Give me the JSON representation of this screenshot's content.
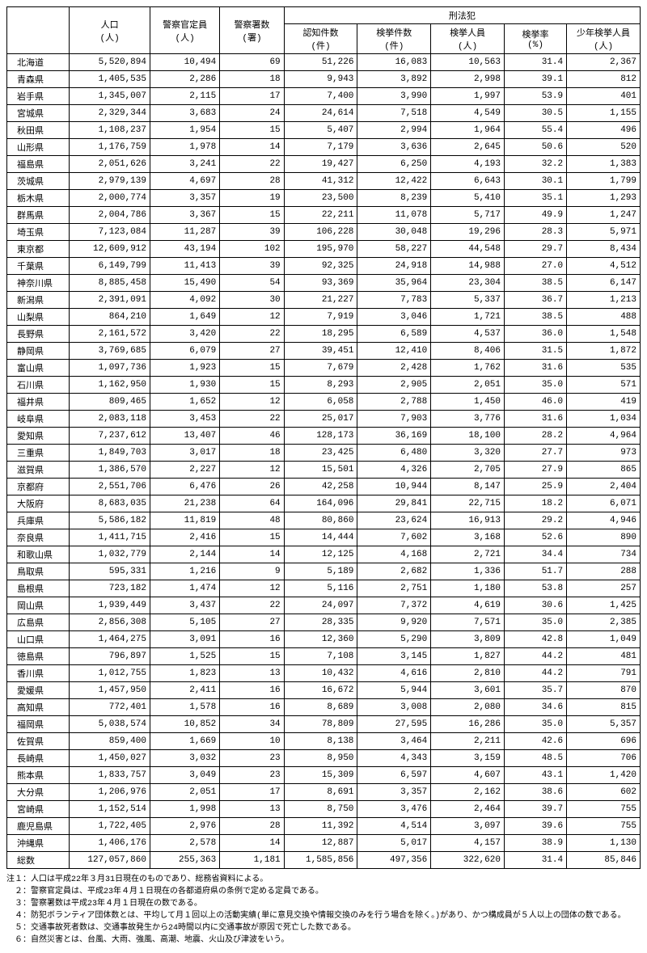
{
  "headers": {
    "blank": "",
    "population": "人口\n(人)",
    "police_personnel": "警察官定員\n(人)",
    "police_stations": "警察署数\n(署)",
    "criminal_group": "刑法犯",
    "recognized": "認知件数\n(件)",
    "arrests": "検挙件数\n(件)",
    "arrested_persons": "検挙人員\n(人)",
    "arrest_rate": "検挙率\n(%)",
    "juvenile": "少年検挙人員\n(人)"
  },
  "rows": [
    {
      "pref": "北海道",
      "pop": "5,520,894",
      "pers": "10,494",
      "stn": "69",
      "rec": "51,226",
      "arr": "16,083",
      "arrp": "10,563",
      "rate": "31.4",
      "juv": "2,367"
    },
    {
      "pref": "青森県",
      "pop": "1,405,535",
      "pers": "2,286",
      "stn": "18",
      "rec": "9,943",
      "arr": "3,892",
      "arrp": "2,998",
      "rate": "39.1",
      "juv": "812"
    },
    {
      "pref": "岩手県",
      "pop": "1,345,007",
      "pers": "2,115",
      "stn": "17",
      "rec": "7,400",
      "arr": "3,990",
      "arrp": "1,997",
      "rate": "53.9",
      "juv": "401"
    },
    {
      "pref": "宮城県",
      "pop": "2,329,344",
      "pers": "3,683",
      "stn": "24",
      "rec": "24,614",
      "arr": "7,518",
      "arrp": "4,549",
      "rate": "30.5",
      "juv": "1,155"
    },
    {
      "pref": "秋田県",
      "pop": "1,108,237",
      "pers": "1,954",
      "stn": "15",
      "rec": "5,407",
      "arr": "2,994",
      "arrp": "1,964",
      "rate": "55.4",
      "juv": "496"
    },
    {
      "pref": "山形県",
      "pop": "1,176,759",
      "pers": "1,978",
      "stn": "14",
      "rec": "7,179",
      "arr": "3,636",
      "arrp": "2,645",
      "rate": "50.6",
      "juv": "520"
    },
    {
      "pref": "福島県",
      "pop": "2,051,626",
      "pers": "3,241",
      "stn": "22",
      "rec": "19,427",
      "arr": "6,250",
      "arrp": "4,193",
      "rate": "32.2",
      "juv": "1,383"
    },
    {
      "pref": "茨城県",
      "pop": "2,979,139",
      "pers": "4,697",
      "stn": "28",
      "rec": "41,312",
      "arr": "12,422",
      "arrp": "6,643",
      "rate": "30.1",
      "juv": "1,799"
    },
    {
      "pref": "栃木県",
      "pop": "2,000,774",
      "pers": "3,357",
      "stn": "19",
      "rec": "23,500",
      "arr": "8,239",
      "arrp": "5,410",
      "rate": "35.1",
      "juv": "1,293"
    },
    {
      "pref": "群馬県",
      "pop": "2,004,786",
      "pers": "3,367",
      "stn": "15",
      "rec": "22,211",
      "arr": "11,078",
      "arrp": "5,717",
      "rate": "49.9",
      "juv": "1,247"
    },
    {
      "pref": "埼玉県",
      "pop": "7,123,084",
      "pers": "11,287",
      "stn": "39",
      "rec": "106,228",
      "arr": "30,048",
      "arrp": "19,296",
      "rate": "28.3",
      "juv": "5,971"
    },
    {
      "pref": "東京都",
      "pop": "12,609,912",
      "pers": "43,194",
      "stn": "102",
      "rec": "195,970",
      "arr": "58,227",
      "arrp": "44,548",
      "rate": "29.7",
      "juv": "8,434"
    },
    {
      "pref": "千葉県",
      "pop": "6,149,799",
      "pers": "11,413",
      "stn": "39",
      "rec": "92,325",
      "arr": "24,918",
      "arrp": "14,988",
      "rate": "27.0",
      "juv": "4,512"
    },
    {
      "pref": "神奈川県",
      "pop": "8,885,458",
      "pers": "15,490",
      "stn": "54",
      "rec": "93,369",
      "arr": "35,964",
      "arrp": "23,304",
      "rate": "38.5",
      "juv": "6,147"
    },
    {
      "pref": "新潟県",
      "pop": "2,391,091",
      "pers": "4,092",
      "stn": "30",
      "rec": "21,227",
      "arr": "7,783",
      "arrp": "5,337",
      "rate": "36.7",
      "juv": "1,213"
    },
    {
      "pref": "山梨県",
      "pop": "864,210",
      "pers": "1,649",
      "stn": "12",
      "rec": "7,919",
      "arr": "3,046",
      "arrp": "1,721",
      "rate": "38.5",
      "juv": "488"
    },
    {
      "pref": "長野県",
      "pop": "2,161,572",
      "pers": "3,420",
      "stn": "22",
      "rec": "18,295",
      "arr": "6,589",
      "arrp": "4,537",
      "rate": "36.0",
      "juv": "1,548"
    },
    {
      "pref": "静岡県",
      "pop": "3,769,685",
      "pers": "6,079",
      "stn": "27",
      "rec": "39,451",
      "arr": "12,410",
      "arrp": "8,406",
      "rate": "31.5",
      "juv": "1,872"
    },
    {
      "pref": "富山県",
      "pop": "1,097,736",
      "pers": "1,923",
      "stn": "15",
      "rec": "7,679",
      "arr": "2,428",
      "arrp": "1,762",
      "rate": "31.6",
      "juv": "535"
    },
    {
      "pref": "石川県",
      "pop": "1,162,950",
      "pers": "1,930",
      "stn": "15",
      "rec": "8,293",
      "arr": "2,905",
      "arrp": "2,051",
      "rate": "35.0",
      "juv": "571"
    },
    {
      "pref": "福井県",
      "pop": "809,465",
      "pers": "1,652",
      "stn": "12",
      "rec": "6,058",
      "arr": "2,788",
      "arrp": "1,450",
      "rate": "46.0",
      "juv": "419"
    },
    {
      "pref": "岐阜県",
      "pop": "2,083,118",
      "pers": "3,453",
      "stn": "22",
      "rec": "25,017",
      "arr": "7,903",
      "arrp": "3,776",
      "rate": "31.6",
      "juv": "1,034"
    },
    {
      "pref": "愛知県",
      "pop": "7,237,612",
      "pers": "13,407",
      "stn": "46",
      "rec": "128,173",
      "arr": "36,169",
      "arrp": "18,100",
      "rate": "28.2",
      "juv": "4,964"
    },
    {
      "pref": "三重県",
      "pop": "1,849,703",
      "pers": "3,017",
      "stn": "18",
      "rec": "23,425",
      "arr": "6,480",
      "arrp": "3,320",
      "rate": "27.7",
      "juv": "973"
    },
    {
      "pref": "滋賀県",
      "pop": "1,386,570",
      "pers": "2,227",
      "stn": "12",
      "rec": "15,501",
      "arr": "4,326",
      "arrp": "2,705",
      "rate": "27.9",
      "juv": "865"
    },
    {
      "pref": "京都府",
      "pop": "2,551,706",
      "pers": "6,476",
      "stn": "26",
      "rec": "42,258",
      "arr": "10,944",
      "arrp": "8,147",
      "rate": "25.9",
      "juv": "2,404"
    },
    {
      "pref": "大阪府",
      "pop": "8,683,035",
      "pers": "21,238",
      "stn": "64",
      "rec": "164,096",
      "arr": "29,841",
      "arrp": "22,715",
      "rate": "18.2",
      "juv": "6,071"
    },
    {
      "pref": "兵庫県",
      "pop": "5,586,182",
      "pers": "11,819",
      "stn": "48",
      "rec": "80,860",
      "arr": "23,624",
      "arrp": "16,913",
      "rate": "29.2",
      "juv": "4,946"
    },
    {
      "pref": "奈良県",
      "pop": "1,411,715",
      "pers": "2,416",
      "stn": "15",
      "rec": "14,444",
      "arr": "7,602",
      "arrp": "3,168",
      "rate": "52.6",
      "juv": "890"
    },
    {
      "pref": "和歌山県",
      "pop": "1,032,779",
      "pers": "2,144",
      "stn": "14",
      "rec": "12,125",
      "arr": "4,168",
      "arrp": "2,721",
      "rate": "34.4",
      "juv": "734"
    },
    {
      "pref": "鳥取県",
      "pop": "595,331",
      "pers": "1,216",
      "stn": "9",
      "rec": "5,189",
      "arr": "2,682",
      "arrp": "1,336",
      "rate": "51.7",
      "juv": "288"
    },
    {
      "pref": "島根県",
      "pop": "723,182",
      "pers": "1,474",
      "stn": "12",
      "rec": "5,116",
      "arr": "2,751",
      "arrp": "1,180",
      "rate": "53.8",
      "juv": "257"
    },
    {
      "pref": "岡山県",
      "pop": "1,939,449",
      "pers": "3,437",
      "stn": "22",
      "rec": "24,097",
      "arr": "7,372",
      "arrp": "4,619",
      "rate": "30.6",
      "juv": "1,425"
    },
    {
      "pref": "広島県",
      "pop": "2,856,308",
      "pers": "5,105",
      "stn": "27",
      "rec": "28,335",
      "arr": "9,920",
      "arrp": "7,571",
      "rate": "35.0",
      "juv": "2,385"
    },
    {
      "pref": "山口県",
      "pop": "1,464,275",
      "pers": "3,091",
      "stn": "16",
      "rec": "12,360",
      "arr": "5,290",
      "arrp": "3,809",
      "rate": "42.8",
      "juv": "1,049"
    },
    {
      "pref": "徳島県",
      "pop": "796,897",
      "pers": "1,525",
      "stn": "15",
      "rec": "7,108",
      "arr": "3,145",
      "arrp": "1,827",
      "rate": "44.2",
      "juv": "481"
    },
    {
      "pref": "香川県",
      "pop": "1,012,755",
      "pers": "1,823",
      "stn": "13",
      "rec": "10,432",
      "arr": "4,616",
      "arrp": "2,810",
      "rate": "44.2",
      "juv": "791"
    },
    {
      "pref": "愛媛県",
      "pop": "1,457,950",
      "pers": "2,411",
      "stn": "16",
      "rec": "16,672",
      "arr": "5,944",
      "arrp": "3,601",
      "rate": "35.7",
      "juv": "870"
    },
    {
      "pref": "高知県",
      "pop": "772,401",
      "pers": "1,578",
      "stn": "16",
      "rec": "8,689",
      "arr": "3,008",
      "arrp": "2,080",
      "rate": "34.6",
      "juv": "815"
    },
    {
      "pref": "福岡県",
      "pop": "5,038,574",
      "pers": "10,852",
      "stn": "34",
      "rec": "78,809",
      "arr": "27,595",
      "arrp": "16,286",
      "rate": "35.0",
      "juv": "5,357"
    },
    {
      "pref": "佐賀県",
      "pop": "859,400",
      "pers": "1,669",
      "stn": "10",
      "rec": "8,138",
      "arr": "3,464",
      "arrp": "2,211",
      "rate": "42.6",
      "juv": "696"
    },
    {
      "pref": "長崎県",
      "pop": "1,450,027",
      "pers": "3,032",
      "stn": "23",
      "rec": "8,950",
      "arr": "4,343",
      "arrp": "3,159",
      "rate": "48.5",
      "juv": "706"
    },
    {
      "pref": "熊本県",
      "pop": "1,833,757",
      "pers": "3,049",
      "stn": "23",
      "rec": "15,309",
      "arr": "6,597",
      "arrp": "4,607",
      "rate": "43.1",
      "juv": "1,420"
    },
    {
      "pref": "大分県",
      "pop": "1,206,976",
      "pers": "2,051",
      "stn": "17",
      "rec": "8,691",
      "arr": "3,357",
      "arrp": "2,162",
      "rate": "38.6",
      "juv": "602"
    },
    {
      "pref": "宮崎県",
      "pop": "1,152,514",
      "pers": "1,998",
      "stn": "13",
      "rec": "8,750",
      "arr": "3,476",
      "arrp": "2,464",
      "rate": "39.7",
      "juv": "755"
    },
    {
      "pref": "鹿児島県",
      "pop": "1,722,405",
      "pers": "2,976",
      "stn": "28",
      "rec": "11,392",
      "arr": "4,514",
      "arrp": "3,097",
      "rate": "39.6",
      "juv": "755"
    },
    {
      "pref": "沖縄県",
      "pop": "1,406,176",
      "pers": "2,578",
      "stn": "14",
      "rec": "12,887",
      "arr": "5,017",
      "arrp": "4,157",
      "rate": "38.9",
      "juv": "1,130"
    }
  ],
  "total": {
    "pref": "総数",
    "pop": "127,057,860",
    "pers": "255,363",
    "stn": "1,181",
    "rec": "1,585,856",
    "arr": "497,356",
    "arrp": "322,620",
    "rate": "31.4",
    "juv": "85,846"
  },
  "notes": [
    "注１：人口は平成22年３月31日現在のものであり、総務省資料による。",
    "　２：警察官定員は、平成23年４月１日現在の各都道府県の条例で定める定員である。",
    "　３：警察署数は平成23年４月１日現在の数である。",
    "　４：防犯ボランティア団体数とは、平均して月１回以上の活動実績(単に意見交換や情報交換のみを行う場合を除く。)があり、かつ構成員が５人以上の団体の数である。",
    "　５：交通事故死者数は、交通事故発生から24時間以内に交通事故が原因で死亡した数である。",
    "　６：自然災害とは、台風、大雨、強風、高潮、地震、火山及び津波をいう。"
  ]
}
